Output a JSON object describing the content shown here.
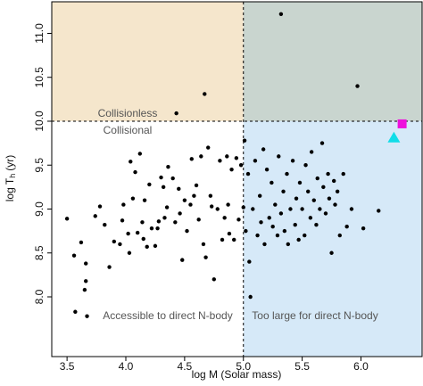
{
  "chart_data": {
    "type": "scatter",
    "x_label": "log M (Solar mass)",
    "y_label": {
      "main": "log T",
      "sub": "h",
      "unit": "(yr)"
    },
    "annotations": [
      "Collisionless",
      "Collisional",
      "Accessible to direct N-body",
      "Too large for direct N-body"
    ],
    "xlim": [
      3.37,
      6.52
    ],
    "ylim": [
      7.32,
      11.36
    ],
    "xticks": [
      3.5,
      {
        "value": 4,
        "label": "4.0"
      },
      4.5,
      {
        "value": 5,
        "label": "5.0"
      },
      5.5,
      {
        "value": 6,
        "label": "6.0"
      }
    ],
    "yticks": [
      {
        "value": 8,
        "label": "8.0"
      },
      8.5,
      {
        "value": 9,
        "label": "9.0"
      },
      9.5,
      {
        "value": 10,
        "label": "10.0"
      },
      10.5,
      {
        "value": 11,
        "label": "11.0"
      }
    ],
    "boundaries": {
      "x": 5,
      "y": 10
    },
    "region_colors": {
      "upper_left": "#f5e6cc",
      "upper_right": "#c9d5cf",
      "lower_left": "#ffffff",
      "lower_right": "#d6e9f8"
    },
    "points": {
      "color": "#000000",
      "x": [
        5.32,
        5.97,
        4.67,
        4.43,
        3.5,
        3.56,
        3.57,
        3.62,
        3.65,
        3.66,
        3.66,
        3.67,
        3.74,
        3.78,
        3.82,
        3.86,
        3.9,
        3.95,
        3.98,
        3.97,
        4.02,
        4.03,
        4.04,
        4.06,
        4.08,
        4.1,
        4.12,
        4.14,
        4.15,
        4.16,
        4.18,
        4.2,
        4.22,
        4.25,
        4.27,
        4.28,
        4.3,
        4.32,
        4.33,
        4.35,
        4.36,
        4.4,
        4.42,
        4.45,
        4.46,
        4.48,
        4.5,
        4.52,
        4.55,
        4.56,
        4.58,
        4.6,
        4.62,
        4.64,
        4.66,
        4.68,
        4.7,
        4.72,
        4.73,
        4.75,
        4.78,
        4.8,
        4.82,
        4.84,
        4.86,
        4.87,
        4.88,
        4.9,
        4.92,
        4.94,
        4.96,
        4.98,
        5.0,
        5.01,
        5.02,
        5.04,
        5.05,
        5.06,
        5.08,
        5.1,
        5.12,
        5.14,
        5.15,
        5.17,
        5.18,
        5.2,
        5.22,
        5.24,
        5.25,
        5.27,
        5.29,
        5.3,
        5.32,
        5.34,
        5.35,
        5.37,
        5.38,
        5.4,
        5.42,
        5.44,
        5.45,
        5.47,
        5.48,
        5.5,
        5.52,
        5.53,
        5.55,
        5.57,
        5.58,
        5.6,
        5.62,
        5.63,
        5.65,
        5.67,
        5.68,
        5.7,
        5.72,
        5.73,
        5.75,
        5.77,
        5.78,
        5.8,
        5.82,
        5.85,
        5.88,
        5.92,
        6.02,
        6.15
      ],
      "y": [
        11.22,
        10.4,
        10.31,
        10.09,
        8.89,
        8.47,
        7.83,
        8.62,
        8.08,
        8.18,
        8.38,
        7.78,
        8.92,
        9.03,
        8.82,
        8.34,
        8.63,
        8.6,
        9.05,
        8.87,
        8.72,
        8.5,
        9.54,
        9.12,
        9.42,
        8.73,
        9.63,
        8.85,
        8.66,
        9.1,
        8.57,
        9.28,
        8.78,
        8.58,
        8.78,
        8.86,
        9.36,
        9.25,
        8.9,
        9.02,
        9.48,
        9.35,
        8.85,
        9.23,
        8.95,
        8.42,
        9.1,
        8.75,
        9.05,
        9.57,
        9.15,
        9.27,
        8.88,
        9.6,
        8.6,
        8.45,
        9.7,
        9.15,
        9.03,
        8.2,
        9.0,
        9.55,
        8.65,
        8.9,
        9.6,
        9.05,
        8.72,
        9.45,
        8.65,
        9.58,
        8.88,
        9.5,
        9.02,
        9.78,
        8.75,
        9.4,
        8.4,
        8.0,
        9.0,
        9.55,
        8.7,
        9.15,
        8.85,
        9.68,
        8.6,
        9.45,
        8.9,
        9.3,
        8.8,
        9.05,
        8.7,
        9.6,
        8.95,
        9.2,
        8.75,
        9.4,
        8.6,
        9.0,
        9.55,
        8.82,
        9.12,
        8.65,
        9.3,
        9.0,
        8.7,
        9.5,
        9.2,
        8.9,
        9.65,
        9.1,
        8.82,
        9.35,
        9.0,
        9.75,
        9.25,
        8.95,
        9.4,
        9.12,
        8.5,
        9.32,
        9.05,
        9.2,
        8.7,
        9.4,
        8.8,
        9.0,
        8.78,
        8.98
      ]
    },
    "special_markers": [
      {
        "x": 6.35,
        "y": 9.97,
        "color": "#ee11dd",
        "shape": "square"
      },
      {
        "x": 6.28,
        "y": 9.82,
        "color": "#11dde8",
        "shape": "triangle"
      }
    ]
  }
}
